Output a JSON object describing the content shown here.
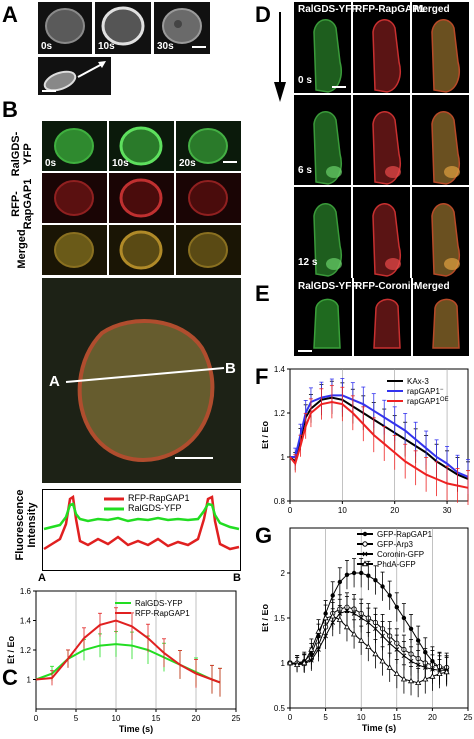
{
  "panels": {
    "A": {
      "label": "A",
      "timepoints": [
        "0s",
        "10s",
        "30s"
      ]
    },
    "B": {
      "label": "B",
      "timepoints": [
        "0s",
        "10s",
        "20s"
      ],
      "row_labels": [
        "RalGDS-\nYFP",
        "RFP-\nRapGAP1",
        "Merged"
      ],
      "line_start": "A",
      "line_end": "B",
      "profile": {
        "ylabel": "Fluorescence\nIntensity",
        "xstart": "A",
        "xend": "B",
        "legend": [
          "RFP-RapGAP1",
          "RalGDS-YFP"
        ]
      }
    },
    "C": {
      "label": "C"
    },
    "D": {
      "label": "D",
      "headers": [
        "RalGDS-YFP",
        "RFP-RapGAP1",
        "Merged"
      ],
      "timepoints": [
        "0 s",
        "6 s",
        "12 s"
      ]
    },
    "E": {
      "label": "E",
      "headers": [
        "RalGDS-YFP",
        "RFP-Coronin",
        "Merged"
      ]
    },
    "F": {
      "label": "F"
    },
    "G": {
      "label": "G"
    }
  },
  "chart_data": [
    {
      "panel": "C",
      "type": "line",
      "xlabel": "Time (s)",
      "ylabel": "Et / Eo",
      "xlim": [
        0,
        25
      ],
      "ylim": [
        0.8,
        1.6
      ],
      "xticks": [
        0,
        5,
        10,
        15,
        20,
        25
      ],
      "yticks": [
        1,
        1.2,
        1.4,
        1.6
      ],
      "legend_position": "top-right",
      "x": [
        0,
        2,
        4,
        6,
        8,
        10,
        12,
        14,
        16,
        18,
        20,
        22,
        23
      ],
      "series": [
        {
          "name": "RalGDS-YFP",
          "color": "#22dd22",
          "values": [
            1.0,
            1.04,
            1.14,
            1.2,
            1.23,
            1.24,
            1.23,
            1.2,
            1.15,
            1.1,
            1.05,
            1.0,
            0.98
          ]
        },
        {
          "name": "RFP-RapGAP1",
          "color": "#e02020",
          "values": [
            1.0,
            1.01,
            1.14,
            1.28,
            1.37,
            1.4,
            1.36,
            1.28,
            1.18,
            1.1,
            1.04,
            1.0,
            0.98
          ]
        }
      ]
    },
    {
      "panel": "F",
      "type": "line",
      "ylabel": "Et / Eo",
      "xlim": [
        0,
        34
      ],
      "ylim": [
        0.8,
        1.4
      ],
      "xticks": [
        0,
        10,
        20,
        30
      ],
      "yticks": [
        0.8,
        1,
        1.2,
        1.4
      ],
      "legend_position": "top-right",
      "x": [
        0,
        1,
        2,
        3,
        4,
        6,
        8,
        10,
        12,
        14,
        16,
        18,
        20,
        22,
        24,
        26,
        28,
        30,
        32,
        34
      ],
      "series": [
        {
          "name": "KAx-3",
          "color": "#000000",
          "values": [
            1.0,
            0.98,
            1.08,
            1.18,
            1.22,
            1.26,
            1.27,
            1.26,
            1.23,
            1.2,
            1.17,
            1.14,
            1.11,
            1.08,
            1.05,
            1.02,
            0.98,
            0.95,
            0.92,
            0.9
          ]
        },
        {
          "name": "rapGAP1",
          "name_sup": "−",
          "color": "#3333ee",
          "values": [
            1.0,
            1.0,
            1.1,
            1.2,
            1.25,
            1.27,
            1.28,
            1.28,
            1.26,
            1.24,
            1.21,
            1.18,
            1.15,
            1.12,
            1.08,
            1.04,
            1.0,
            0.97,
            0.93,
            0.91
          ]
        },
        {
          "name": "rapGAP1",
          "name_sup": "OE",
          "color": "#ee2222",
          "values": [
            1.0,
            0.97,
            1.05,
            1.14,
            1.2,
            1.24,
            1.25,
            1.24,
            1.2,
            1.15,
            1.1,
            1.06,
            1.02,
            0.98,
            0.95,
            0.92,
            0.9,
            0.88,
            0.87,
            0.86
          ]
        }
      ]
    },
    {
      "panel": "G",
      "type": "line",
      "xlabel": "Time (s)",
      "ylabel": "Et / Eo",
      "xlim": [
        0,
        25
      ],
      "ylim": [
        0.5,
        2.5
      ],
      "xticks": [
        0,
        5,
        10,
        15,
        20,
        25
      ],
      "yticks": [
        0.5,
        1,
        1.5,
        2
      ],
      "legend_position": "top-right",
      "x": [
        0,
        1,
        2,
        3,
        4,
        5,
        6,
        7,
        8,
        9,
        10,
        11,
        12,
        13,
        14,
        15,
        16,
        17,
        18,
        19,
        20,
        21,
        22
      ],
      "series": [
        {
          "name": "GFP-RapGAP1",
          "color": "#000000",
          "marker": "filled-circle",
          "values": [
            1.0,
            1.0,
            1.02,
            1.1,
            1.3,
            1.55,
            1.75,
            1.9,
            1.98,
            2.0,
            2.0,
            1.97,
            1.92,
            1.85,
            1.75,
            1.62,
            1.5,
            1.38,
            1.25,
            1.12,
            1.02,
            0.95,
            0.92
          ]
        },
        {
          "name": "GFP-Arp3",
          "color": "#000000",
          "marker": "open-circle",
          "values": [
            1.0,
            1.0,
            1.0,
            1.05,
            1.2,
            1.4,
            1.55,
            1.6,
            1.62,
            1.6,
            1.55,
            1.5,
            1.45,
            1.38,
            1.3,
            1.22,
            1.15,
            1.1,
            1.05,
            1.0,
            0.98,
            0.96,
            0.95
          ]
        },
        {
          "name": "Coronin-GFP",
          "color": "#000000",
          "marker": "x",
          "values": [
            1.0,
            0.98,
            0.99,
            1.03,
            1.15,
            1.3,
            1.45,
            1.55,
            1.58,
            1.55,
            1.5,
            1.45,
            1.38,
            1.3,
            1.22,
            1.15,
            1.08,
            1.02,
            0.98,
            0.95,
            0.93,
            0.92,
            0.92
          ]
        },
        {
          "name": "PhdA-GFP",
          "color": "#000000",
          "marker": "triangle",
          "values": [
            1.0,
            0.98,
            1.0,
            1.15,
            1.35,
            1.5,
            1.52,
            1.48,
            1.4,
            1.32,
            1.25,
            1.18,
            1.1,
            1.02,
            0.95,
            0.88,
            0.82,
            0.8,
            0.78,
            0.82,
            0.85,
            0.88,
            0.9
          ]
        }
      ]
    }
  ]
}
